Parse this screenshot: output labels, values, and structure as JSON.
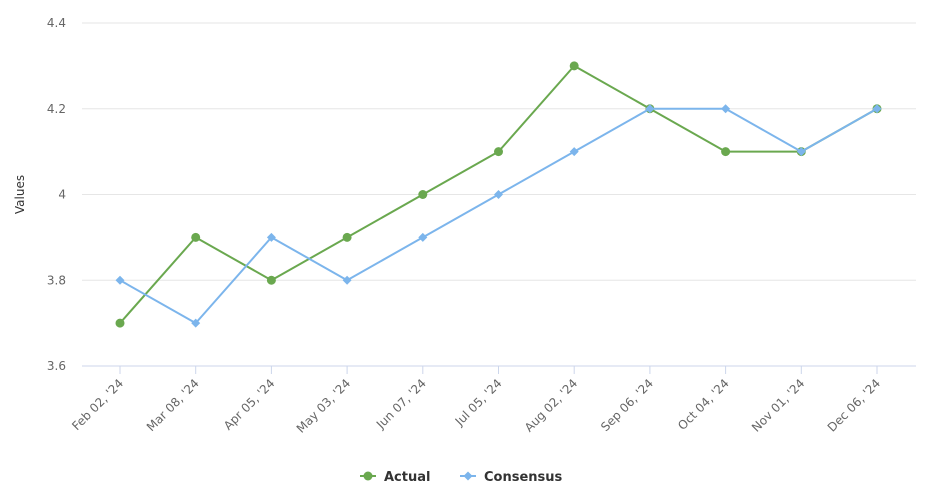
{
  "chart_data": {
    "type": "line",
    "title": "",
    "xlabel": "",
    "ylabel": "Values",
    "categories": [
      "Feb 02, '24",
      "Mar 08, '24",
      "Apr 05, '24",
      "May 03, '24",
      "Jun 07, '24",
      "Jul 05, '24",
      "Aug 02, '24",
      "Sep 06, '24",
      "Oct 04, '24",
      "Nov 01, '24",
      "Dec 06, '24"
    ],
    "yticks": [
      "3.6",
      "3.8",
      "4",
      "4.2",
      "4.4"
    ],
    "ylim": [
      3.6,
      4.4
    ],
    "grid": true,
    "legend": "bottom-center",
    "series": [
      {
        "name": "Actual",
        "color": "#6aa84f",
        "marker": "circle",
        "values": [
          3.7,
          3.9,
          3.8,
          3.9,
          4.0,
          4.1,
          4.3,
          4.2,
          4.1,
          4.1,
          4.2
        ]
      },
      {
        "name": "Consensus",
        "color": "#7cb5ec",
        "marker": "diamond",
        "values": [
          3.8,
          3.7,
          3.9,
          3.8,
          3.9,
          4.0,
          4.1,
          4.2,
          4.2,
          4.1,
          4.2
        ]
      }
    ]
  }
}
